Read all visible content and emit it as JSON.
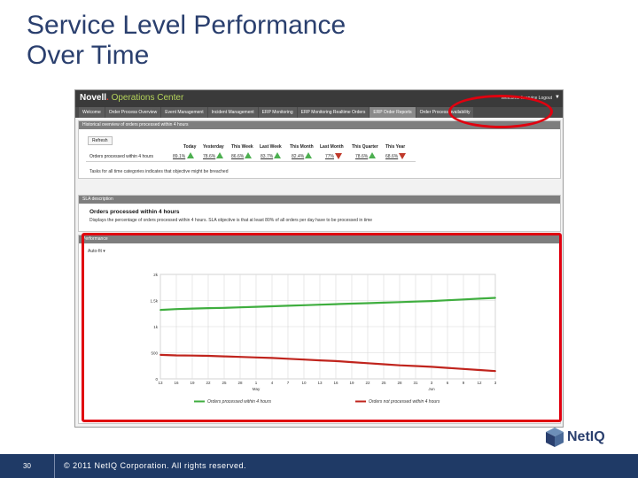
{
  "slide": {
    "title_line1": "Service Level Performance",
    "title_line2": "Over Time",
    "page_number": "30",
    "copyright": "© 2011 NetIQ Corporation. All rights reserved."
  },
  "app": {
    "brand_prefix": "Novell",
    "brand_accent": ".",
    "brand_product": "Operations Center",
    "welcome": "Welcome Itservice",
    "user": "Logout",
    "tabs": [
      {
        "label": "Welcome"
      },
      {
        "label": "Order Process Overview"
      },
      {
        "label": "Event Management"
      },
      {
        "label": "Incident Management"
      },
      {
        "label": "ERP Monitoring"
      },
      {
        "label": "ERP Monitoring Realtime Orders"
      },
      {
        "label": "ERP Order Reports"
      },
      {
        "label": "Order Process Availability"
      }
    ]
  },
  "historical_panel": {
    "header": "Historical overview of orders processed within 4 hours",
    "refresh_label": "Refresh",
    "columns": [
      "Today",
      "Yesterday",
      "This Week",
      "Last Week",
      "This Month",
      "Last Month",
      "This Quarter",
      "This Year"
    ],
    "row_label": "Orders processed within 4 hours",
    "values": [
      "89.1%",
      "78.6%",
      "86.6%",
      "83.7%",
      "82.4%",
      "77%",
      "78.6%",
      "68.6%"
    ],
    "trends": [
      "up",
      "up",
      "up",
      "up",
      "up",
      "down",
      "up",
      "down"
    ],
    "note": "Tasks for all time categories indicates that objective might be breached"
  },
  "sla_panel": {
    "header": "SLA description",
    "title": "Orders processed within 4 hours",
    "description": "Displays the percentage of orders processed within 4 hours. SLA objective is that at least 80% of all orders per day have to be processed in time"
  },
  "performance_panel": {
    "header": "Performance",
    "select_value": "Auto-fit"
  },
  "colors": {
    "title": "#2a3f6e",
    "footer": "#1f3a66",
    "highlight": "#e0000f",
    "green_series": "#3fae3f",
    "red_series": "#c0241d"
  },
  "chart_data": {
    "type": "line",
    "y_tick_labels": [
      "2k",
      "1.5k",
      "1k",
      "500",
      "0"
    ],
    "x_tick_labels": [
      "13",
      "16",
      "19",
      "22",
      "25",
      "28",
      "1",
      "4",
      "7",
      "10",
      "13",
      "16",
      "19",
      "22",
      "25",
      "28",
      "31",
      "3",
      "6",
      "9",
      "12",
      "3"
    ],
    "month_labels": [
      {
        "label": "May",
        "at_index": 6
      },
      {
        "label": "Jun",
        "at_index": 17
      }
    ],
    "ylim": [
      0,
      2000
    ],
    "series": [
      {
        "name": "Orders processed within 4 hours",
        "values": [
          1320,
          1335,
          1345,
          1355,
          1360,
          1370,
          1380,
          1390,
          1400,
          1410,
          1420,
          1430,
          1440,
          1450,
          1460,
          1470,
          1480,
          1490,
          1505,
          1520,
          1535,
          1550
        ]
      },
      {
        "name": "Orders not processed within 4 hours",
        "values": [
          460,
          450,
          445,
          440,
          430,
          420,
          410,
          400,
          385,
          370,
          355,
          340,
          320,
          300,
          280,
          260,
          245,
          230,
          210,
          190,
          170,
          150
        ]
      }
    ],
    "grid": true,
    "legend_position": "bottom"
  }
}
